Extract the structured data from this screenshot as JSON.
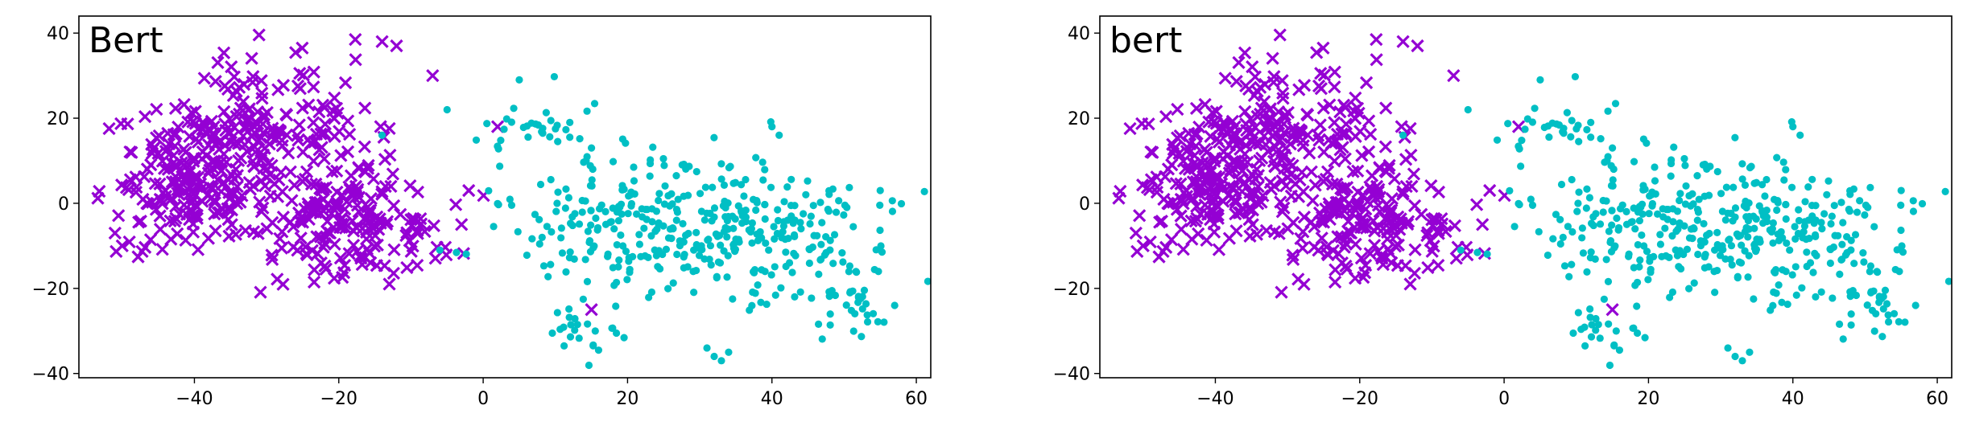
{
  "chart_data": [
    {
      "type": "scatter",
      "title": "Bert",
      "xlabel": "",
      "ylabel": "",
      "xlim": [
        -56,
        62
      ],
      "ylim": [
        -41,
        44
      ],
      "xticks": [
        -40,
        -20,
        0,
        20,
        40,
        60
      ],
      "yticks": [
        -40,
        -20,
        0,
        20,
        40
      ],
      "grid": false,
      "series": [
        {
          "marker": "x",
          "color": "#9400D3",
          "seed": 17,
          "n": 560,
          "clusters": [
            {
              "cx": -32,
              "cy": 16,
              "sx": 7.5,
              "sy": 9.5,
              "w": 0.42
            },
            {
              "cx": -18,
              "cy": -4,
              "sx": 6.0,
              "sy": 6.5,
              "w": 0.36
            },
            {
              "cx": -42,
              "cy": 5,
              "sx": 5.0,
              "sy": 7.0,
              "w": 0.22
            }
          ],
          "extra": [
            [
              -51,
              -7
            ],
            [
              -50,
              -10
            ],
            [
              -14,
              38
            ],
            [
              -12,
              37
            ],
            [
              -7,
              30
            ],
            [
              2,
              18
            ],
            [
              -2,
              3
            ],
            [
              15,
              -25
            ],
            [
              -3,
              -5
            ],
            [
              -13,
              -19
            ]
          ]
        },
        {
          "marker": "o",
          "color": "#00BFC4",
          "seed": 29,
          "n": 480,
          "clusters": [
            {
              "cx": 26,
              "cy": -5,
              "sx": 11.0,
              "sy": 8.5,
              "w": 0.62
            },
            {
              "cx": 44,
              "cy": -10,
              "sx": 7.0,
              "sy": 9.0,
              "w": 0.2
            },
            {
              "cx": 52,
              "cy": -24,
              "sx": 3.0,
              "sy": 3.0,
              "w": 0.06
            },
            {
              "cx": 13,
              "cy": -30,
              "sx": 3.0,
              "sy": 3.0,
              "w": 0.05
            },
            {
              "cx": 7,
              "cy": 17,
              "sx": 3.5,
              "sy": 3.0,
              "w": 0.07
            }
          ],
          "extra": [
            [
              5,
              29
            ],
            [
              12,
              19
            ],
            [
              40,
              18
            ],
            [
              41,
              16
            ],
            [
              32,
              -36
            ],
            [
              33,
              -37
            ],
            [
              34,
              -35
            ],
            [
              31,
              -34
            ],
            [
              55,
              3
            ],
            [
              57,
              -24
            ],
            [
              -14,
              16
            ],
            [
              -6,
              -11
            ],
            [
              -5,
              22
            ],
            [
              15,
              13
            ]
          ]
        }
      ]
    },
    {
      "type": "scatter",
      "title": "bert",
      "xlabel": "",
      "ylabel": "",
      "xlim": [
        -56,
        62
      ],
      "ylim": [
        -41,
        44
      ],
      "xticks": [
        -40,
        -20,
        0,
        20,
        40,
        60
      ],
      "yticks": [
        -40,
        -20,
        0,
        20,
        40
      ],
      "grid": false,
      "series": [
        {
          "marker": "x",
          "color": "#9400D3",
          "seed": 17,
          "n": 560,
          "clusters": [
            {
              "cx": -32,
              "cy": 16,
              "sx": 7.5,
              "sy": 9.5,
              "w": 0.42
            },
            {
              "cx": -18,
              "cy": -4,
              "sx": 6.0,
              "sy": 6.5,
              "w": 0.36
            },
            {
              "cx": -42,
              "cy": 5,
              "sx": 5.0,
              "sy": 7.0,
              "w": 0.22
            }
          ],
          "extra": [
            [
              -51,
              -7
            ],
            [
              -50,
              -10
            ],
            [
              -14,
              38
            ],
            [
              -12,
              37
            ],
            [
              -7,
              30
            ],
            [
              2,
              18
            ],
            [
              -2,
              3
            ],
            [
              15,
              -25
            ],
            [
              -3,
              -5
            ],
            [
              -13,
              -19
            ]
          ]
        },
        {
          "marker": "o",
          "color": "#00BFC4",
          "seed": 29,
          "n": 480,
          "clusters": [
            {
              "cx": 26,
              "cy": -5,
              "sx": 11.0,
              "sy": 8.5,
              "w": 0.62
            },
            {
              "cx": 44,
              "cy": -10,
              "sx": 7.0,
              "sy": 9.0,
              "w": 0.2
            },
            {
              "cx": 52,
              "cy": -24,
              "sx": 3.0,
              "sy": 3.0,
              "w": 0.06
            },
            {
              "cx": 13,
              "cy": -30,
              "sx": 3.0,
              "sy": 3.0,
              "w": 0.05
            },
            {
              "cx": 7,
              "cy": 17,
              "sx": 3.5,
              "sy": 3.0,
              "w": 0.07
            }
          ],
          "extra": [
            [
              5,
              29
            ],
            [
              12,
              19
            ],
            [
              40,
              18
            ],
            [
              41,
              16
            ],
            [
              32,
              -36
            ],
            [
              33,
              -37
            ],
            [
              34,
              -35
            ],
            [
              31,
              -34
            ],
            [
              55,
              3
            ],
            [
              57,
              -24
            ],
            [
              -14,
              16
            ],
            [
              -6,
              -11
            ],
            [
              -5,
              22
            ],
            [
              15,
              13
            ]
          ]
        }
      ]
    }
  ]
}
